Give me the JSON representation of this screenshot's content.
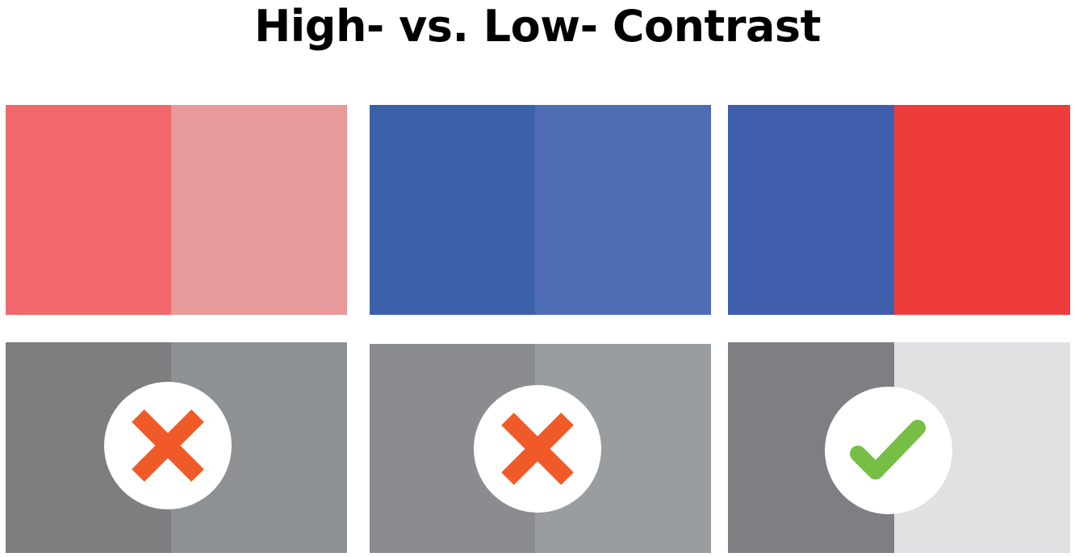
{
  "title": "High- vs. Low- Contrast",
  "color_pairs": [
    {
      "left": "#f0686c",
      "right": "#e89999"
    },
    {
      "left": "#3d60ab",
      "right": "#4e6db5"
    },
    {
      "left": "#3f5eab",
      "right": "#ee3c3c"
    }
  ],
  "grayscale_pairs": [
    {
      "left": "#7e7e81",
      "right": "#8e9193",
      "verdict": "fail",
      "icon": "x-icon"
    },
    {
      "left": "#8b8c8f",
      "right": "#9a9d9f",
      "verdict": "fail",
      "icon": "x-icon"
    },
    {
      "left": "#7f7e82",
      "right": "#dfe1e2",
      "verdict": "pass",
      "icon": "checkmark-icon"
    }
  ],
  "colors": {
    "fail": "#f05a28",
    "pass": "#76bf44",
    "badge": "#ffffff"
  }
}
